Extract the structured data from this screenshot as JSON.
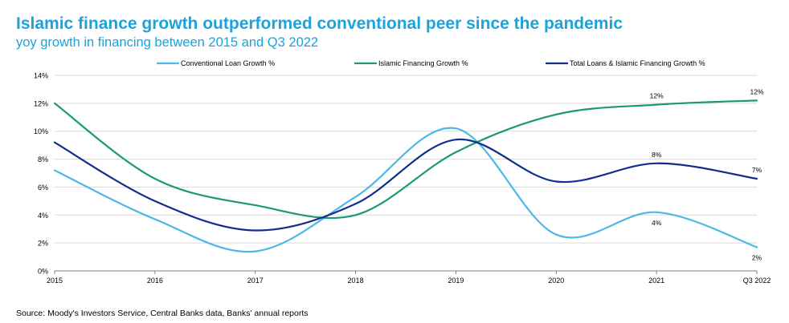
{
  "header": {
    "title": "Islamic finance growth outperformed conventional peer since the pandemic",
    "subtitle": "yoy growth in financing between 2015 and Q3 2022"
  },
  "footer": {
    "source": "Source: Moody's Investors Service, Central Banks data, Banks' annual reports"
  },
  "chart_data": {
    "type": "line",
    "title": "Islamic finance growth outperformed conventional peer since the pandemic",
    "subtitle": "yoy growth in financing between 2015 and Q3 2022",
    "categories": [
      "2015",
      "2016",
      "2017",
      "2018",
      "2019",
      "2020",
      "2021",
      "Q3 2022"
    ],
    "ylim": [
      0,
      14
    ],
    "yticks": [
      0,
      2,
      4,
      6,
      8,
      10,
      12,
      14
    ],
    "ytick_labels": [
      "0%",
      "2%",
      "4%",
      "6%",
      "8%",
      "10%",
      "12%",
      "14%"
    ],
    "grid": true,
    "legend_position": "top",
    "series": [
      {
        "name": "Conventional Loan Growth %",
        "color": "#4bb8e8",
        "values": [
          7.2,
          3.7,
          1.4,
          5.3,
          10.2,
          2.6,
          4.2,
          1.7
        ],
        "labels": [
          null,
          null,
          null,
          null,
          null,
          null,
          "4%",
          "2%"
        ]
      },
      {
        "name": "Islamic Financing Growth %",
        "color": "#1b9876",
        "values": [
          12.0,
          6.6,
          4.7,
          4.0,
          8.5,
          11.2,
          11.9,
          12.2
        ],
        "labels": [
          null,
          null,
          null,
          null,
          null,
          null,
          "12%",
          "12%"
        ]
      },
      {
        "name": "Total Loans & Islamic Financing Growth %",
        "color": "#102f8c",
        "values": [
          9.2,
          5.0,
          2.9,
          4.8,
          9.4,
          6.4,
          7.7,
          6.6
        ],
        "labels": [
          null,
          null,
          null,
          null,
          null,
          null,
          "8%",
          "7%"
        ]
      }
    ]
  }
}
